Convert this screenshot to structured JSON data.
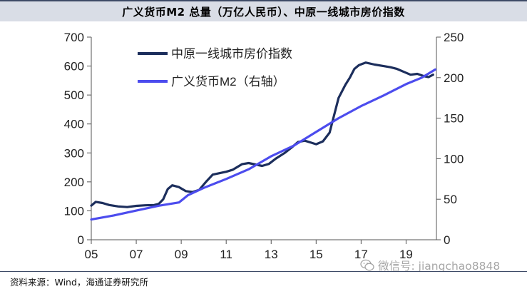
{
  "header": {
    "title": "广义货币M2 总量（万亿人民币）、中原一线城市房价指数"
  },
  "footer": {
    "source": "资料来源：Wind，海通证券研究所"
  },
  "watermark": {
    "text": "微信号: jiangchao8848",
    "icon": "wechat-icon"
  },
  "colors": {
    "house_index": "#1c2e5c",
    "m2": "#4c4cee",
    "title_bg": "#d9dde6",
    "rule": "#3d4a66"
  },
  "chart_data": {
    "type": "line",
    "title": "",
    "x_ticks": [
      "05",
      "07",
      "09",
      "11",
      "13",
      "15",
      "17",
      "19"
    ],
    "x_range": [
      2005,
      2020.35
    ],
    "y_left": {
      "ticks": [
        0,
        100,
        200,
        300,
        400,
        500,
        600,
        700
      ],
      "range": [
        0,
        700
      ]
    },
    "y_right": {
      "ticks": [
        0,
        50,
        100,
        150,
        200,
        250
      ],
      "range": [
        0,
        250
      ]
    },
    "legend": {
      "position": "top-left"
    },
    "grid": false,
    "series": [
      {
        "name": "中原一线城市房价指数",
        "axis": "left",
        "points": [
          [
            2005.0,
            118
          ],
          [
            2005.2,
            131
          ],
          [
            2005.5,
            127
          ],
          [
            2005.8,
            120
          ],
          [
            2006.2,
            115
          ],
          [
            2006.6,
            113
          ],
          [
            2007.0,
            117
          ],
          [
            2007.4,
            119
          ],
          [
            2007.8,
            120
          ],
          [
            2008.0,
            124
          ],
          [
            2008.2,
            140
          ],
          [
            2008.4,
            175
          ],
          [
            2008.6,
            188
          ],
          [
            2008.9,
            182
          ],
          [
            2009.2,
            168
          ],
          [
            2009.5,
            165
          ],
          [
            2009.8,
            172
          ],
          [
            2010.1,
            200
          ],
          [
            2010.4,
            225
          ],
          [
            2010.7,
            230
          ],
          [
            2011.0,
            235
          ],
          [
            2011.3,
            242
          ],
          [
            2011.7,
            261
          ],
          [
            2012.0,
            265
          ],
          [
            2012.3,
            260
          ],
          [
            2012.6,
            255
          ],
          [
            2012.9,
            262
          ],
          [
            2013.2,
            280
          ],
          [
            2013.6,
            300
          ],
          [
            2013.9,
            318
          ],
          [
            2014.2,
            338
          ],
          [
            2014.5,
            342
          ],
          [
            2014.8,
            335
          ],
          [
            2015.0,
            330
          ],
          [
            2015.3,
            340
          ],
          [
            2015.6,
            370
          ],
          [
            2015.8,
            430
          ],
          [
            2016.0,
            490
          ],
          [
            2016.3,
            535
          ],
          [
            2016.5,
            560
          ],
          [
            2016.7,
            590
          ],
          [
            2016.9,
            603
          ],
          [
            2017.2,
            612
          ],
          [
            2017.6,
            605
          ],
          [
            2018.0,
            600
          ],
          [
            2018.3,
            596
          ],
          [
            2018.6,
            590
          ],
          [
            2018.9,
            580
          ],
          [
            2019.2,
            570
          ],
          [
            2019.5,
            573
          ],
          [
            2019.8,
            565
          ],
          [
            2020.0,
            562
          ],
          [
            2020.2,
            570
          ]
        ]
      },
      {
        "name": "广义货币M2（右轴）",
        "axis": "right",
        "points": [
          [
            2005.0,
            25
          ],
          [
            2006.0,
            30
          ],
          [
            2007.0,
            36
          ],
          [
            2008.0,
            42
          ],
          [
            2008.9,
            46
          ],
          [
            2009.3,
            55
          ],
          [
            2010.0,
            64
          ],
          [
            2011.0,
            75
          ],
          [
            2012.0,
            87
          ],
          [
            2013.0,
            103
          ],
          [
            2014.0,
            116
          ],
          [
            2015.0,
            133
          ],
          [
            2016.0,
            150
          ],
          [
            2017.0,
            165
          ],
          [
            2018.0,
            178
          ],
          [
            2019.0,
            192
          ],
          [
            2019.7,
            200
          ],
          [
            2020.3,
            210
          ]
        ]
      }
    ]
  }
}
